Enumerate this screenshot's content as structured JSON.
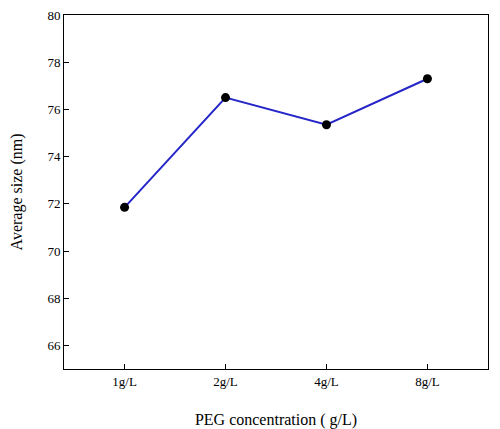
{
  "chart_data": {
    "type": "line",
    "x_label": "PEG concentration ( g/L)",
    "y_label": "Average size (nm)",
    "categories": [
      "1g/L",
      "2g/L",
      "4g/L",
      "8g/L"
    ],
    "series": [
      {
        "name": "Average size",
        "color": "#2626c8",
        "marker": "circle",
        "line_style": "solid",
        "values": [
          71.85,
          76.5,
          75.35,
          77.3
        ]
      }
    ],
    "ylim": [
      65,
      80
    ],
    "yticks": [
      66,
      68,
      70,
      72,
      74,
      76,
      78,
      80
    ],
    "grid": false
  }
}
